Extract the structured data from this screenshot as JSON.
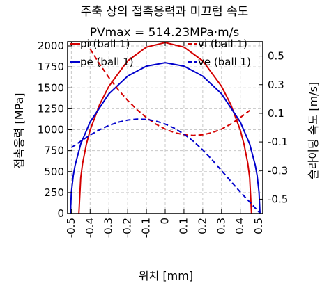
{
  "chart_data": {
    "type": "line",
    "title": "주축 상의 접촉응력과 미끄럼 속도",
    "subtitle": "PVmax = 514.23MPa·m/s",
    "xlabel": "위치 [mm]",
    "ylabel_left": "접촉응력 [MPa]",
    "ylabel_right": "슬라이딩 속도 [m/s]",
    "xlim": [
      -0.52,
      0.52
    ],
    "ylim_left": [
      0,
      2050
    ],
    "ylim_right": [
      -0.6,
      0.6
    ],
    "x_ticks": [
      -0.5,
      -0.4,
      -0.3,
      -0.2,
      -0.1,
      0,
      0.1,
      0.2,
      0.3,
      0.4,
      0.5
    ],
    "x_tick_labels": [
      "-0.5",
      "-0.4",
      "-0.3",
      "-0.2",
      "-0.1",
      "0",
      "0.1",
      "0.2",
      "0.3",
      "0.4",
      "0.5"
    ],
    "y_left_ticks": [
      0,
      250,
      500,
      750,
      1000,
      1250,
      1500,
      1750,
      2000
    ],
    "y_left_tick_labels": [
      "0",
      "250",
      "500",
      "750",
      "1000",
      "1250",
      "1500",
      "1750",
      "2000"
    ],
    "y_right_ticks": [
      -0.5,
      -0.3,
      -0.1,
      0.1,
      0.3,
      0.5
    ],
    "y_right_tick_labels": [
      "-0.5",
      "-0.3",
      "-0.1",
      "0.1",
      "0.3",
      "0.5"
    ],
    "grid": true,
    "legend": "top, two columns",
    "series": [
      {
        "name": "pi (ball 1)",
        "axis": "left",
        "style": "solid",
        "color": "#d40000",
        "x": [
          -0.46,
          -0.45,
          -0.44,
          -0.42,
          -0.4,
          -0.35,
          -0.3,
          -0.2,
          -0.1,
          0,
          0.1,
          0.2,
          0.3,
          0.35,
          0.4,
          0.42,
          0.44,
          0.45,
          0.46
        ],
        "y": [
          0,
          425,
          598,
          826,
          995,
          1298,
          1518,
          1823,
          1986,
          2040,
          1986,
          1823,
          1518,
          1298,
          995,
          826,
          598,
          425,
          0
        ]
      },
      {
        "name": "pe (ball 1)",
        "axis": "left",
        "style": "solid",
        "color": "#0000cc",
        "x": [
          -0.505,
          -0.5,
          -0.49,
          -0.48,
          -0.45,
          -0.4,
          -0.3,
          -0.2,
          -0.1,
          0,
          0.1,
          0.2,
          0.3,
          0.4,
          0.45,
          0.48,
          0.49,
          0.5,
          0.505
        ],
        "y": [
          0,
          253,
          452,
          576,
          829,
          1092,
          1428,
          1640,
          1759,
          1800,
          1759,
          1640,
          1428,
          1092,
          829,
          576,
          452,
          253,
          0
        ]
      },
      {
        "name": "vi (ball 1)",
        "axis": "right",
        "style": "dashed",
        "color": "#d40000",
        "x": [
          -0.4,
          -0.35,
          -0.3,
          -0.25,
          -0.2,
          -0.15,
          -0.1,
          -0.05,
          0,
          0.05,
          0.1,
          0.15,
          0.2,
          0.25,
          0.3,
          0.35,
          0.4,
          0.45
        ],
        "y": [
          0.55,
          0.445,
          0.35,
          0.265,
          0.19,
          0.125,
          0.07,
          0.025,
          -0.01,
          -0.035,
          -0.05,
          -0.055,
          -0.05,
          -0.035,
          -0.01,
          0.025,
          0.07,
          0.12
        ]
      },
      {
        "name": "ve (ball 1)",
        "axis": "right",
        "style": "dashed",
        "color": "#0000cc",
        "x": [
          -0.5,
          -0.45,
          -0.4,
          -0.35,
          -0.3,
          -0.25,
          -0.2,
          -0.15,
          -0.1,
          -0.05,
          0,
          0.05,
          0.1,
          0.15,
          0.2,
          0.25,
          0.3,
          0.35,
          0.4,
          0.45,
          0.5
        ],
        "y": [
          -0.14,
          -0.095,
          -0.052,
          -0.015,
          0.015,
          0.038,
          0.053,
          0.06,
          0.058,
          0.046,
          0.025,
          -0.005,
          -0.045,
          -0.095,
          -0.155,
          -0.225,
          -0.3,
          -0.375,
          -0.45,
          -0.52,
          -0.59
        ]
      }
    ]
  }
}
